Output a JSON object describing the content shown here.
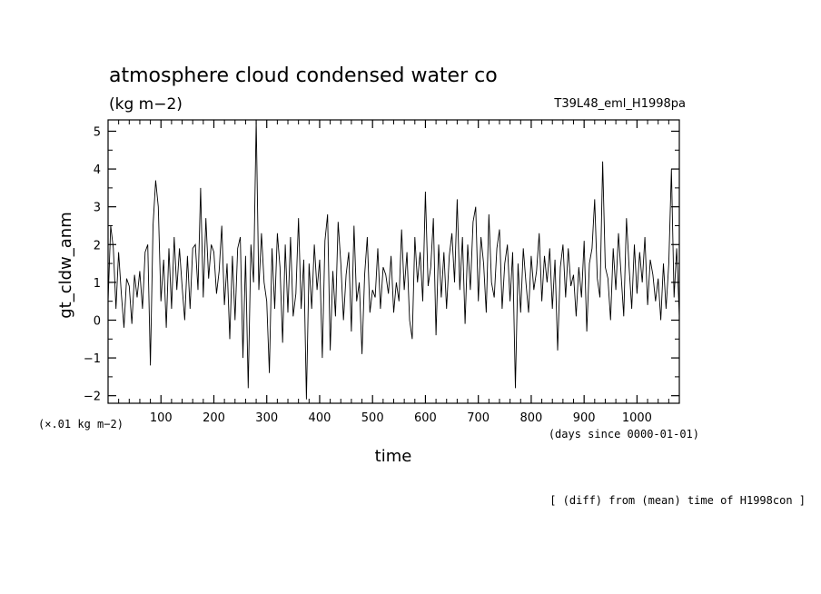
{
  "chart_data": {
    "type": "line",
    "title": "atmosphere cloud condensed water co",
    "units_label": "(kg m−2)",
    "run_label": "T39L48_eml_H1998pa",
    "ylabel": "gt_cldw_anm",
    "xlabel": "time",
    "x_units_label": "(days since 0000-01-01)",
    "y_scale_label": "(×.01 kg m−2)",
    "footer": "[ (diff) from (mean) time of H1998con ]",
    "xlim": [
      0,
      1080
    ],
    "ylim": [
      -2.2,
      5.3
    ],
    "x_ticks": [
      100,
      200,
      300,
      400,
      500,
      600,
      700,
      800,
      900,
      1000
    ],
    "x_tick_labels": [
      "100",
      "200",
      "300",
      "400",
      "500",
      "600",
      "700",
      "800",
      "900",
      "1000"
    ],
    "y_ticks": [
      -2,
      -1,
      0,
      1,
      2,
      3,
      4,
      5
    ],
    "y_tick_labels": [
      "−2",
      "−1",
      "0",
      "1",
      "2",
      "3",
      "4",
      "5"
    ],
    "series": [
      {
        "name": "gt_cldw_anm",
        "x_start": 0,
        "x_step": 5,
        "values": [
          0.5,
          2.5,
          1.9,
          0.3,
          1.8,
          0.7,
          -0.2,
          1.1,
          0.9,
          -0.1,
          1.2,
          0.6,
          1.3,
          0.3,
          1.8,
          2.0,
          -1.2,
          2.5,
          3.7,
          3.0,
          0.5,
          1.6,
          -0.2,
          1.9,
          0.3,
          2.2,
          0.8,
          1.9,
          0.9,
          0.0,
          1.7,
          0.3,
          1.9,
          2.0,
          0.8,
          3.5,
          0.6,
          2.7,
          1.1,
          2.0,
          1.8,
          0.7,
          1.3,
          2.5,
          0.4,
          1.5,
          -0.5,
          1.7,
          0.0,
          1.9,
          2.2,
          -1.0,
          1.7,
          -1.8,
          2.0,
          1.0,
          5.3,
          0.8,
          2.3,
          1.0,
          0.5,
          -1.4,
          1.9,
          0.3,
          2.3,
          1.4,
          -0.6,
          2.0,
          0.2,
          2.2,
          0.1,
          0.7,
          2.7,
          0.3,
          1.6,
          -2.1,
          1.5,
          0.3,
          2.0,
          0.8,
          1.6,
          -1.0,
          2.1,
          2.8,
          -0.8,
          1.3,
          0.1,
          2.6,
          1.5,
          0.0,
          1.2,
          1.8,
          -0.3,
          2.5,
          0.5,
          1.0,
          -0.9,
          1.2,
          2.2,
          0.2,
          0.8,
          0.6,
          1.9,
          0.3,
          1.4,
          1.2,
          0.7,
          1.7,
          0.2,
          1.0,
          0.5,
          2.4,
          0.8,
          1.8,
          0.0,
          -0.5,
          2.2,
          1.0,
          1.8,
          0.5,
          3.4,
          0.9,
          1.4,
          2.7,
          -0.4,
          2.0,
          0.6,
          1.8,
          0.3,
          1.7,
          2.3,
          1.0,
          3.2,
          0.8,
          2.2,
          -0.1,
          2.0,
          0.8,
          2.6,
          3.0,
          0.5,
          2.2,
          1.5,
          0.2,
          2.8,
          1.0,
          0.6,
          1.9,
          2.4,
          0.3,
          1.5,
          2.0,
          0.5,
          1.8,
          -1.8,
          1.5,
          0.2,
          1.9,
          1.0,
          0.2,
          1.7,
          0.8,
          1.3,
          2.3,
          0.5,
          1.7,
          1.0,
          1.9,
          0.3,
          1.6,
          -0.8,
          1.4,
          2.0,
          0.6,
          1.9,
          0.9,
          1.2,
          0.1,
          1.4,
          0.6,
          2.1,
          -0.3,
          1.5,
          1.9,
          3.2,
          1.1,
          0.6,
          4.2,
          1.4,
          1.1,
          0.0,
          1.9,
          0.8,
          2.3,
          1.2,
          0.1,
          2.7,
          1.4,
          0.3,
          2.0,
          0.7,
          1.8,
          1.0,
          2.2,
          0.4,
          1.6,
          1.2,
          0.5,
          1.1,
          0.0,
          1.5,
          0.3,
          1.5,
          4.0,
          0.6,
          1.9,
          0.1,
          1.2,
          1.5,
          0.8,
          1.7,
          -0.8,
          2.2,
          1.1,
          2.0,
          0.3,
          1.3,
          0.2,
          1.5,
          2.1,
          0.5,
          1.4,
          -0.4,
          2.6,
          1.8,
          0.4,
          1.9,
          2.2,
          -2.1,
          1.6,
          3.4,
          0.8,
          1.3,
          -2.0,
          1.9,
          3.8,
          0.4,
          1.7,
          -0.2,
          2.6,
          1.2,
          0.3,
          1.8,
          -0.7,
          1.6,
          2.1,
          0.2,
          1.8,
          0.6,
          2.2,
          0.8,
          1.5,
          0.1,
          2.4,
          1.2,
          -0.8,
          2.0,
          0.0,
          1.5,
          0.9,
          2.6,
          0.6,
          1.3,
          2.1,
          1.4,
          3.5,
          -2.0,
          3.4,
          0.5,
          2.0,
          -1.3,
          1.1,
          2.3,
          1.0,
          2.6,
          0.7,
          2.9,
          1.3,
          2.5,
          0.2,
          1.4,
          3.0,
          0.8,
          1.6,
          0.1,
          1.9,
          0.9,
          2.5,
          1.4,
          0.3,
          1.4,
          -0.3,
          1.8,
          0.7,
          1.2,
          0.5,
          1.7,
          0.2,
          1.5,
          0.9,
          1.4,
          0.1,
          1.8,
          -1.4,
          1.2,
          0.5,
          2.0,
          1.1,
          0.6,
          1.8,
          -1.5,
          1.7,
          0.8,
          2.1,
          0.5,
          1.3,
          2.4,
          0.3,
          1.8,
          1.0,
          0.5,
          1.4,
          2.0,
          0.8,
          2.5,
          0.4,
          1.5,
          -0.3,
          2.1,
          1.2,
          0.6,
          1.7,
          0.9,
          2.3,
          0.4,
          1.1,
          1.9,
          0.3,
          1.4,
          0.8,
          2.0,
          1.5,
          0.1,
          3.3,
          1.0
        ]
      }
    ]
  }
}
